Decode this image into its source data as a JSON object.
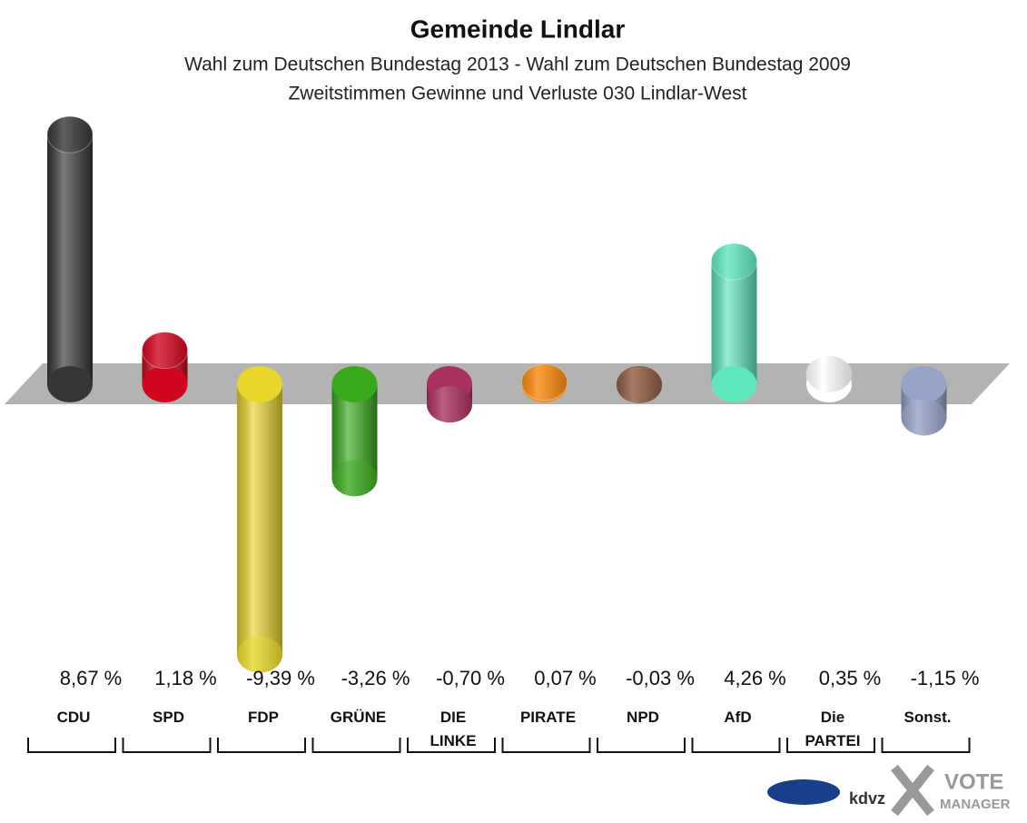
{
  "chart_data": {
    "type": "bar",
    "title": "Gemeinde Lindlar",
    "subtitle": [
      "Wahl zum Deutschen Bundestag 2013 - Wahl zum Deutschen Bundestag 2009",
      "Zweitstimmen Gewinne und Verluste 030 Lindlar-West"
    ],
    "categories": [
      "CDU",
      "SPD",
      "FDP",
      "GRÜNE",
      "DIE LINKE",
      "PIRATE",
      "NPD",
      "AfD",
      "Die PARTEI",
      "Sonst."
    ],
    "values": [
      8.67,
      1.18,
      -9.39,
      -3.26,
      -0.7,
      0.07,
      -0.03,
      4.26,
      0.35,
      -1.15
    ],
    "value_labels": [
      "8,67 %",
      "1,18 %",
      "-9,39 %",
      "-3,26 %",
      "-0,70 %",
      "0,07 %",
      "-0,03 %",
      "4,26 %",
      "0,35 %",
      "-1,15 %"
    ],
    "colors": [
      "#353535",
      "#d0061e",
      "#e9d62a",
      "#39a91c",
      "#a8315f",
      "#f8870c",
      "#8c5a3e",
      "#5fe6bf",
      "#ffffff",
      "#97a3c8"
    ],
    "credits": [
      "kdvz",
      "VOTE",
      "MANAGER"
    ]
  }
}
